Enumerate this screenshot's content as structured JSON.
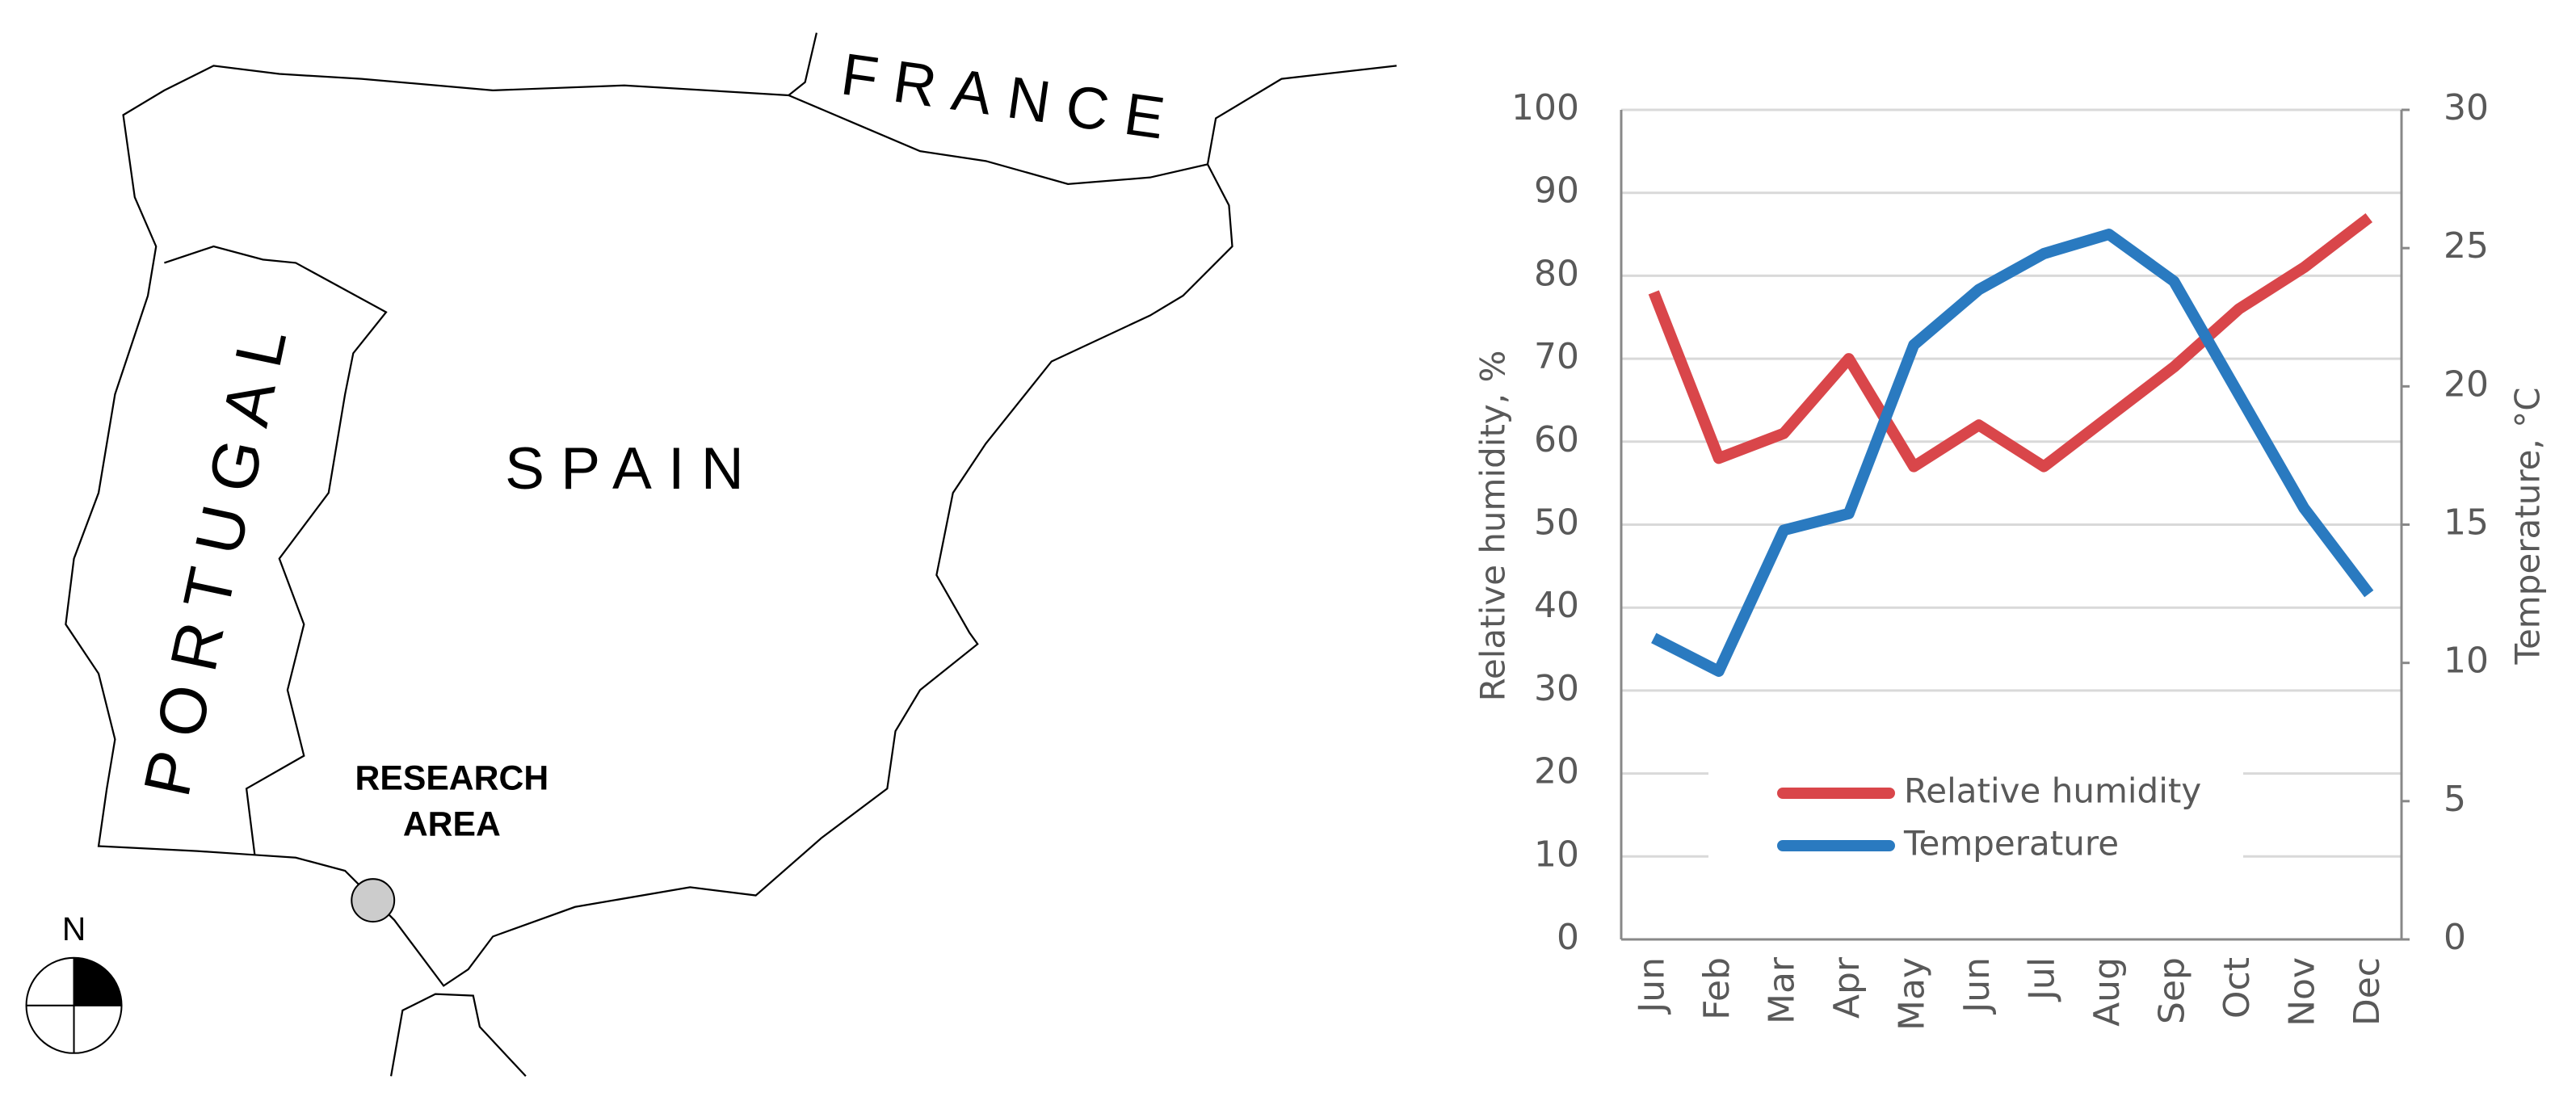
{
  "map": {
    "labels": [
      "FRANCE",
      "SPAIN",
      "PORTUGAL",
      "RESEARCH",
      "AREA",
      "N"
    ]
  },
  "chart_data": {
    "type": "line",
    "categories": [
      "Jun",
      "Feb",
      "Mar",
      "Apr",
      "May",
      "Jun",
      "Jul",
      "Aug",
      "Sep",
      "Oct",
      "Nov",
      "Dec"
    ],
    "series": [
      {
        "name": "Relative humidity",
        "color": "#d9464a",
        "values": [
          78,
          58,
          61,
          70,
          57,
          62,
          57,
          63,
          69,
          76,
          81,
          87
        ]
      },
      {
        "name": "Temperature",
        "color": "#2a7ac0",
        "axis": "y2",
        "values": [
          10.9,
          9.7,
          14.8,
          15.4,
          21.5,
          23.5,
          24.8,
          25.5,
          23.8,
          19.7,
          15.6,
          12.5
        ]
      }
    ],
    "ylabel": "Relative humidity, %",
    "y2label": "Temperature, °C",
    "ylim": [
      0,
      100
    ],
    "yticks": [
      0,
      10,
      20,
      30,
      40,
      50,
      60,
      70,
      80,
      90,
      100
    ],
    "y2lim": [
      0,
      30
    ],
    "y2ticks": [
      0,
      5,
      10,
      15,
      20,
      25,
      30
    ],
    "grid": true,
    "legend": "bottom"
  }
}
